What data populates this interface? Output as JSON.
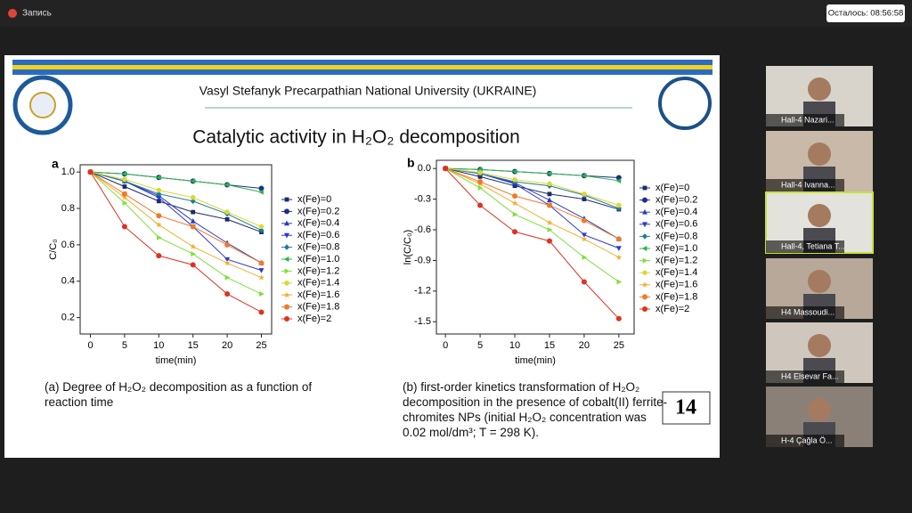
{
  "topbar": {
    "recording": "Запись",
    "timer": "Осталось: 08:56:58"
  },
  "slide": {
    "university": "Vasyl Stefanyk Precarpathian National University (UKRAINE)",
    "title": "Catalytic activity in H₂O₂ decomposition",
    "caption_a": "(a) Degree of H₂O₂ decomposition as a function of reaction time",
    "caption_b": "(b) first-order kinetics transformation of H₂O₂ decomposition in the presence of cobalt(II) ferrite-chromites NPs (initial H₂O₂ concentration was 0.02 mol/dm³;  T = 298 K).",
    "page_number": "14"
  },
  "chart_data": [
    {
      "type": "line",
      "panel": "a",
      "xlabel": "time(min)",
      "ylabel": "C/C₀",
      "x": [
        0,
        5,
        10,
        15,
        20,
        25
      ],
      "xlim": [
        -1.5,
        26.5
      ],
      "xticks": [
        0,
        5,
        10,
        15,
        20,
        25
      ],
      "ylim": [
        0.11,
        1.04
      ],
      "yticks": [
        0.2,
        0.4,
        0.6,
        0.8,
        {
          "value": 1.0,
          "label": "1.0"
        }
      ],
      "series": [
        {
          "name": "x(Fe)=0",
          "color": "#1f2a6b",
          "marker": "square",
          "values": [
            1.0,
            0.92,
            0.84,
            0.78,
            0.74,
            0.67
          ]
        },
        {
          "name": "x(Fe)=0.2",
          "color": "#1c2f86",
          "marker": "circle",
          "values": [
            1.0,
            0.99,
            0.97,
            0.95,
            0.93,
            0.91
          ]
        },
        {
          "name": "x(Fe)=0.4",
          "color": "#2a3fb5",
          "marker": "up",
          "values": [
            1.0,
            0.95,
            0.87,
            0.73,
            0.61,
            0.5
          ]
        },
        {
          "name": "x(Fe)=0.6",
          "color": "#2b36d6",
          "marker": "down",
          "values": [
            1.0,
            0.95,
            0.86,
            0.7,
            0.52,
            0.46
          ]
        },
        {
          "name": "x(Fe)=0.8",
          "color": "#1f7a9a",
          "marker": "diamond",
          "values": [
            1.0,
            0.95,
            0.88,
            0.84,
            0.77,
            0.68
          ]
        },
        {
          "name": "x(Fe)=1.0",
          "color": "#2db34a",
          "marker": "left",
          "values": [
            1.0,
            0.99,
            0.97,
            0.95,
            0.93,
            0.89
          ]
        },
        {
          "name": "x(Fe)=1.2",
          "color": "#7fe03a",
          "marker": "right",
          "values": [
            1.0,
            0.83,
            0.64,
            0.55,
            0.42,
            0.33
          ]
        },
        {
          "name": "x(Fe)=1.4",
          "color": "#d9d935",
          "marker": "hexagon",
          "values": [
            1.0,
            0.96,
            0.9,
            0.86,
            0.78,
            0.7
          ]
        },
        {
          "name": "x(Fe)=1.6",
          "color": "#f0b030",
          "marker": "star",
          "values": [
            1.0,
            0.86,
            0.71,
            0.59,
            0.5,
            0.42
          ]
        },
        {
          "name": "x(Fe)=1.8",
          "color": "#f07a2a",
          "marker": "circle",
          "values": [
            1.0,
            0.88,
            0.76,
            0.7,
            0.6,
            0.5
          ]
        },
        {
          "name": "x(Fe)=2",
          "color": "#e03020",
          "marker": "circle",
          "values": [
            1.0,
            0.7,
            0.54,
            0.49,
            0.33,
            0.23
          ]
        }
      ]
    },
    {
      "type": "line",
      "panel": "b",
      "xlabel": "time(min)",
      "ylabel": "ln(C/C₀)",
      "x": [
        0,
        5,
        10,
        15,
        20,
        25
      ],
      "xlim": [
        -1.3,
        27.2
      ],
      "xticks": [
        0,
        5,
        10,
        15,
        20,
        25
      ],
      "ylim": [
        -1.62,
        0.08
      ],
      "yticks": [
        {
          "value": 0,
          "label": "0.0"
        },
        -0.3,
        -0.6,
        -0.9,
        -1.2,
        -1.5
      ],
      "series": [
        {
          "name": "x(Fe)=0",
          "color": "#1f2a6b",
          "marker": "square",
          "values": [
            0,
            -0.08,
            -0.17,
            -0.25,
            -0.3,
            -0.4
          ]
        },
        {
          "name": "x(Fe)=0.2",
          "color": "#1c2f86",
          "marker": "circle",
          "values": [
            0,
            -0.01,
            -0.03,
            -0.05,
            -0.07,
            -0.09
          ]
        },
        {
          "name": "x(Fe)=0.4",
          "color": "#2a3fb5",
          "marker": "up",
          "values": [
            0,
            -0.05,
            -0.14,
            -0.31,
            -0.49,
            -0.69
          ]
        },
        {
          "name": "x(Fe)=0.6",
          "color": "#2b36d6",
          "marker": "down",
          "values": [
            0,
            -0.05,
            -0.15,
            -0.36,
            -0.65,
            -0.78
          ]
        },
        {
          "name": "x(Fe)=0.8",
          "color": "#1f7a9a",
          "marker": "diamond",
          "values": [
            0,
            -0.05,
            -0.13,
            -0.17,
            -0.26,
            -0.39
          ]
        },
        {
          "name": "x(Fe)=1.0",
          "color": "#2db34a",
          "marker": "left",
          "values": [
            0,
            -0.01,
            -0.03,
            -0.05,
            -0.07,
            -0.12
          ]
        },
        {
          "name": "x(Fe)=1.2",
          "color": "#7fe03a",
          "marker": "right",
          "values": [
            0,
            -0.19,
            -0.45,
            -0.6,
            -0.87,
            -1.11
          ]
        },
        {
          "name": "x(Fe)=1.4",
          "color": "#d9d935",
          "marker": "hexagon",
          "values": [
            0,
            -0.04,
            -0.11,
            -0.15,
            -0.25,
            -0.36
          ]
        },
        {
          "name": "x(Fe)=1.6",
          "color": "#f0b030",
          "marker": "star",
          "values": [
            0,
            -0.15,
            -0.34,
            -0.53,
            -0.69,
            -0.87
          ]
        },
        {
          "name": "x(Fe)=1.8",
          "color": "#f07a2a",
          "marker": "circle",
          "values": [
            0,
            -0.13,
            -0.27,
            -0.36,
            -0.51,
            -0.69
          ]
        },
        {
          "name": "x(Fe)=2",
          "color": "#e03020",
          "marker": "circle",
          "values": [
            0,
            -0.36,
            -0.62,
            -0.71,
            -1.11,
            -1.47
          ]
        }
      ]
    }
  ],
  "participants": [
    "Hall-4 Nazari...",
    "Hall-4 Ivanna...",
    "Hall-4, Tetiana T...",
    "H4 Massoudi...",
    "H4 Elsevar Fa...",
    "H-4 Çağla Ö..."
  ]
}
